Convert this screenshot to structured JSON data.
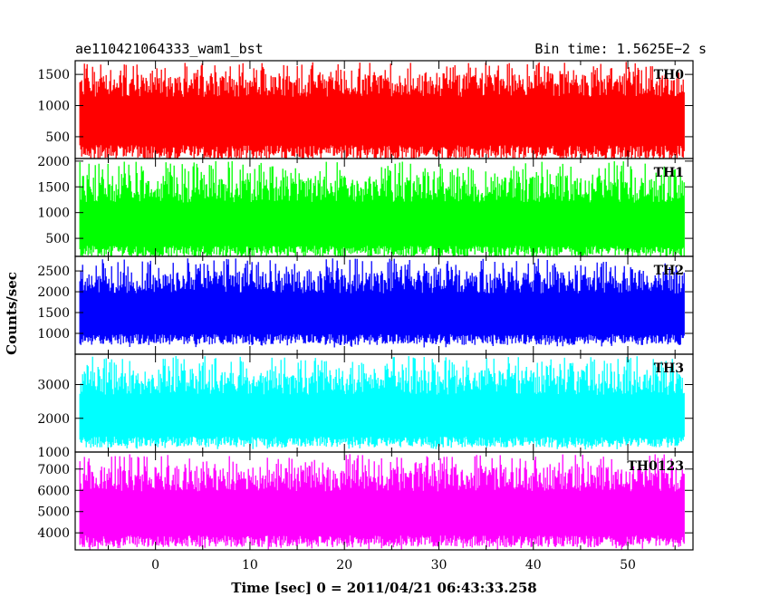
{
  "header": {
    "title": "ae110421064333_wam1_bst",
    "bin_time": "Bin time: 1.5625E−2 s"
  },
  "chart_data": {
    "type": "line",
    "xlabel": "Time [sec] 0 = 2011/04/21 06:43:33.258",
    "ylabel": "Counts/sec",
    "xlim": [
      -8.5,
      56.9
    ],
    "xticks": [
      0,
      10,
      20,
      30,
      40,
      50
    ],
    "x_start": -8.0,
    "x_end": 56.0,
    "bin_time": 0.015625,
    "grid": false,
    "panels": [
      {
        "name": "TH0",
        "color": "#ff0000",
        "ylim": [
          150,
          1720
        ],
        "yticks": [
          500,
          1000,
          1500
        ],
        "baseline": 900,
        "floor_mean": 250,
        "peak_max": 1700
      },
      {
        "name": "TH1",
        "color": "#00ff00",
        "ylim": [
          150,
          2050
        ],
        "yticks": [
          500,
          1000,
          1500,
          2000
        ],
        "baseline": 850,
        "floor_mean": 250,
        "peak_max": 2000
      },
      {
        "name": "TH2",
        "color": "#0000ff",
        "ylim": [
          500,
          2850
        ],
        "yticks": [
          1000,
          1500,
          2000,
          2500
        ],
        "baseline": 1600,
        "floor_mean": 850,
        "peak_max": 2800
      },
      {
        "name": "TH3",
        "color": "#00ffff",
        "ylim": [
          1000,
          3900
        ],
        "yticks": [
          1000,
          2000,
          3000
        ],
        "baseline": 2200,
        "floor_mean": 1300,
        "peak_max": 3850
      },
      {
        "name": "TH0123",
        "color": "#ff00ff",
        "ylim": [
          3200,
          7800
        ],
        "yticks": [
          4000,
          5000,
          6000,
          7000
        ],
        "baseline": 5200,
        "floor_mean": 3600,
        "peak_max": 7700
      }
    ]
  }
}
